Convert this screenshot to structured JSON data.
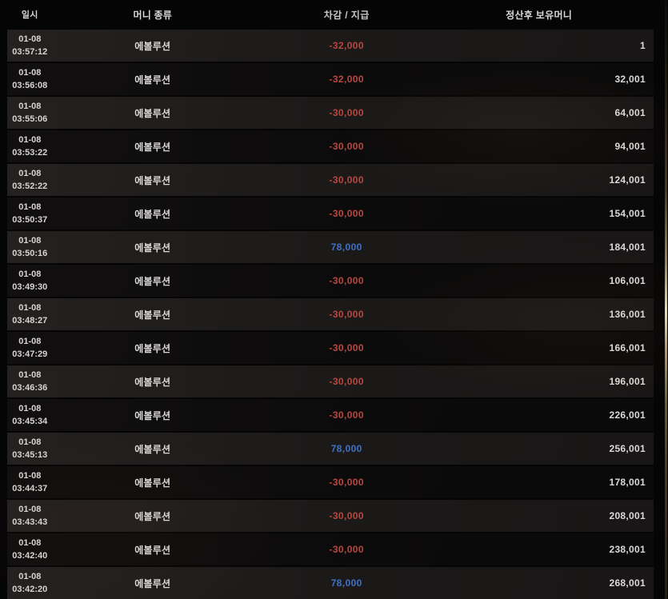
{
  "colors": {
    "negative_amount": "#b9473f",
    "positive_amount": "#4071c4",
    "header_text": "#c9c7c5",
    "row_text": "#dbd9d7",
    "row_light_bg": "#201e1d",
    "row_dark_bg": "#0c0b0b",
    "page_bg": "#060505",
    "gold_edge": "#ecdfae"
  },
  "table": {
    "columns": [
      {
        "label": "일시"
      },
      {
        "label": "머니 종류"
      },
      {
        "label": "차감 / 지급"
      },
      {
        "label": "정산후 보유머니"
      }
    ],
    "rows": [
      {
        "date": "01-08",
        "time": "03:57:12",
        "type": "에볼루션",
        "amount": "-32,000",
        "balance": "1"
      },
      {
        "date": "01-08",
        "time": "03:56:08",
        "type": "에볼루션",
        "amount": "-32,000",
        "balance": "32,001"
      },
      {
        "date": "01-08",
        "time": "03:55:06",
        "type": "에볼루션",
        "amount": "-30,000",
        "balance": "64,001"
      },
      {
        "date": "01-08",
        "time": "03:53:22",
        "type": "에볼루션",
        "amount": "-30,000",
        "balance": "94,001"
      },
      {
        "date": "01-08",
        "time": "03:52:22",
        "type": "에볼루션",
        "amount": "-30,000",
        "balance": "124,001"
      },
      {
        "date": "01-08",
        "time": "03:50:37",
        "type": "에볼루션",
        "amount": "-30,000",
        "balance": "154,001"
      },
      {
        "date": "01-08",
        "time": "03:50:16",
        "type": "에볼루션",
        "amount": "78,000",
        "balance": "184,001"
      },
      {
        "date": "01-08",
        "time": "03:49:30",
        "type": "에볼루션",
        "amount": "-30,000",
        "balance": "106,001"
      },
      {
        "date": "01-08",
        "time": "03:48:27",
        "type": "에볼루션",
        "amount": "-30,000",
        "balance": "136,001"
      },
      {
        "date": "01-08",
        "time": "03:47:29",
        "type": "에볼루션",
        "amount": "-30,000",
        "balance": "166,001"
      },
      {
        "date": "01-08",
        "time": "03:46:36",
        "type": "에볼루션",
        "amount": "-30,000",
        "balance": "196,001"
      },
      {
        "date": "01-08",
        "time": "03:45:34",
        "type": "에볼루션",
        "amount": "-30,000",
        "balance": "226,001"
      },
      {
        "date": "01-08",
        "time": "03:45:13",
        "type": "에볼루션",
        "amount": "78,000",
        "balance": "256,001"
      },
      {
        "date": "01-08",
        "time": "03:44:37",
        "type": "에볼루션",
        "amount": "-30,000",
        "balance": "178,001"
      },
      {
        "date": "01-08",
        "time": "03:43:43",
        "type": "에볼루션",
        "amount": "-30,000",
        "balance": "208,001"
      },
      {
        "date": "01-08",
        "time": "03:42:40",
        "type": "에볼루션",
        "amount": "-30,000",
        "balance": "238,001"
      },
      {
        "date": "01-08",
        "time": "03:42:20",
        "type": "에볼루션",
        "amount": "78,000",
        "balance": "268,001"
      }
    ]
  }
}
